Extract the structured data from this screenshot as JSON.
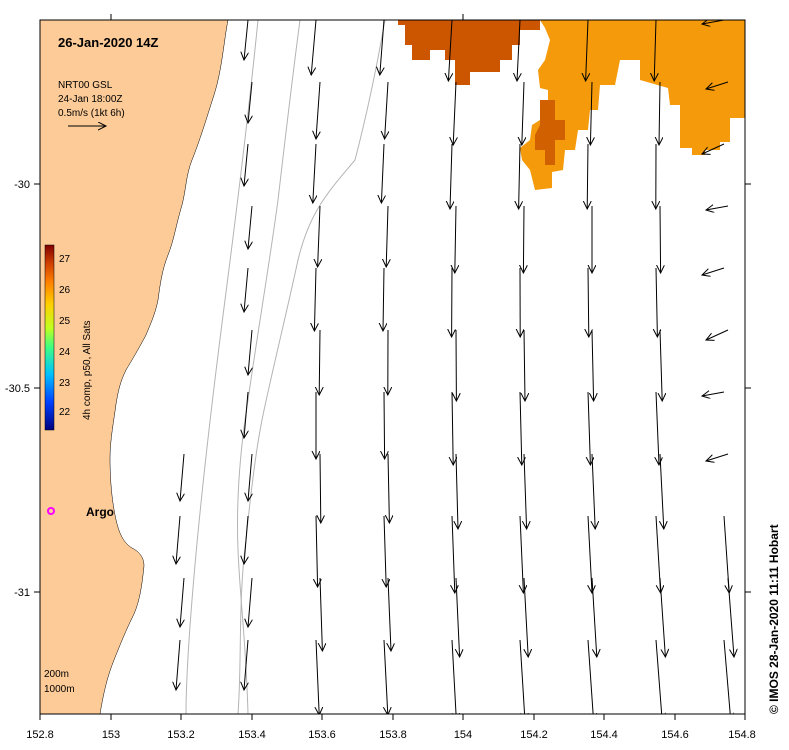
{
  "title": "26-Jan-2020 14Z",
  "info": {
    "line1": "NRT00 GSL",
    "line2": "24-Jan 18:00Z",
    "line3": "0.5m/s (1kt 6h)"
  },
  "colorbar": {
    "label": "4h comp, p50, All Sats",
    "ticks": [
      "27",
      "26",
      "25",
      "24",
      "23",
      "22"
    ],
    "colors": [
      "#00007f",
      "#0040ff",
      "#00c0ff",
      "#40ff80",
      "#c0ff20",
      "#ffd000",
      "#ff8000",
      "#d04000",
      "#800000"
    ]
  },
  "station": {
    "name": "Argo",
    "marker_color": "#ff00ff"
  },
  "contours": {
    "label_200": "200m",
    "label_1000": "1000m"
  },
  "axes": {
    "x_ticks": [
      "152.8",
      "153",
      "153.2",
      "153.4",
      "153.6",
      "153.8",
      "154",
      "154.2",
      "154.4",
      "154.6",
      "154.8"
    ],
    "y_ticks": [
      "-30",
      "-30.5",
      "-31"
    ]
  },
  "credit": "© IMOS 28-Jan-2020 11:11 Hobart",
  "colors": {
    "land": "#fdcb98",
    "sst_warm": "#cc5500",
    "sst_orange": "#f59a0a",
    "contour": "#b4b4b4"
  }
}
